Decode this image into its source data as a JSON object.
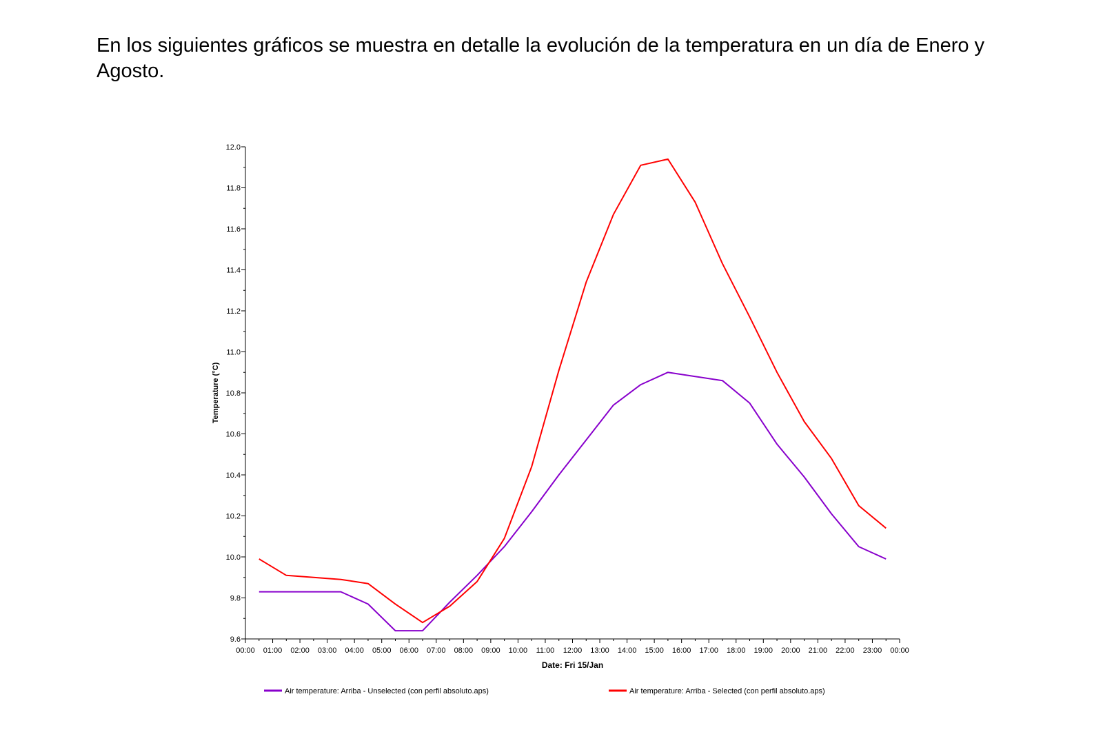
{
  "document": {
    "intro_text": "En los siguientes gráficos se muestra en detalle la evolución de la temperatura en un día de Enero y Agosto."
  },
  "chart_data": {
    "type": "line",
    "title": "",
    "xlabel": "Date: Fri 15/Jan",
    "ylabel": "Temperature (°C)",
    "x_ticks": [
      "00:00",
      "01:00",
      "02:00",
      "03:00",
      "04:00",
      "05:00",
      "06:00",
      "07:00",
      "08:00",
      "09:00",
      "10:00",
      "11:00",
      "12:00",
      "13:00",
      "14:00",
      "15:00",
      "16:00",
      "17:00",
      "18:00",
      "19:00",
      "20:00",
      "21:00",
      "22:00",
      "23:00",
      "00:00"
    ],
    "y_ticks": [
      "9.6",
      "9.8",
      "10.0",
      "10.2",
      "10.4",
      "10.6",
      "10.8",
      "11.0",
      "11.2",
      "11.4",
      "11.6",
      "11.8",
      "12.0"
    ],
    "ylim": [
      9.6,
      12.0
    ],
    "xlim_hours": [
      0,
      24
    ],
    "grid": false,
    "legend_position": "bottom",
    "x_hours": [
      0.5,
      1.5,
      2.5,
      3.5,
      4.5,
      5.5,
      6.5,
      7.5,
      8.5,
      9.5,
      10.5,
      11.5,
      12.5,
      13.5,
      14.5,
      15.5,
      16.5,
      17.5,
      18.5,
      19.5,
      20.5,
      21.5,
      22.5,
      23.5
    ],
    "series": [
      {
        "name": "Air temperature: Arriba - Unselected (con perfil absoluto.aps)",
        "color": "#8800cc",
        "values": [
          9.83,
          9.83,
          9.83,
          9.83,
          9.77,
          9.64,
          9.64,
          9.78,
          9.91,
          10.05,
          10.22,
          10.4,
          10.57,
          10.74,
          10.84,
          10.9,
          10.88,
          10.86,
          10.75,
          10.55,
          10.39,
          10.21,
          10.05,
          9.99
        ]
      },
      {
        "name": "Air temperature: Arriba - Selected (con perfil absoluto.aps)",
        "color": "#ff0000",
        "values": [
          9.99,
          9.91,
          9.9,
          9.89,
          9.87,
          9.77,
          9.68,
          9.76,
          9.88,
          10.09,
          10.44,
          10.91,
          11.34,
          11.67,
          11.91,
          11.94,
          11.73,
          11.43,
          11.17,
          10.9,
          10.66,
          10.48,
          10.25,
          10.14
        ]
      }
    ]
  }
}
